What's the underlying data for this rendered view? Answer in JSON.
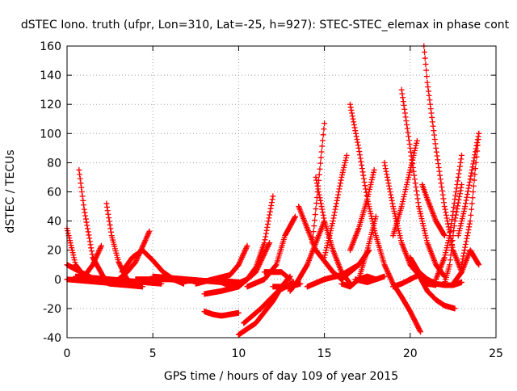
{
  "chart_data": {
    "type": "scatter",
    "title": "dSTEC Iono. truth (ufpr, Lon=310, Lat=-25, h=927): STEC-STEC_elemax in phase cont",
    "xlabel": "GPS time / hours of day 109 of year 2015",
    "ylabel": "dSTEC  / TECUs",
    "xlim": [
      0,
      25
    ],
    "ylim": [
      -40,
      160
    ],
    "xticks": [
      0,
      5,
      10,
      15,
      20,
      25
    ],
    "yticks": [
      -40,
      -20,
      0,
      20,
      40,
      60,
      80,
      100,
      120,
      140,
      160
    ],
    "grid": true,
    "marker": "+",
    "color": "#ff0000",
    "series": [
      {
        "x": [
          0.0,
          0.5,
          1.0,
          1.5,
          2.0
        ],
        "y": [
          35,
          10,
          2,
          10,
          23
        ]
      },
      {
        "x": [
          0.0,
          0.8,
          1.6,
          2.5,
          3.5,
          4.4
        ],
        "y": [
          10,
          5,
          0,
          -3,
          -4,
          -5
        ]
      },
      {
        "x": [
          0.0,
          1.0,
          2.0,
          3.0,
          4.0
        ],
        "y": [
          0,
          -1,
          -2,
          -3,
          -4
        ]
      },
      {
        "x": [
          0.7,
          1.0,
          1.5,
          2.2,
          3.0,
          3.8
        ],
        "y": [
          75,
          48,
          15,
          0,
          -3,
          -4
        ]
      },
      {
        "x": [
          2.3,
          2.6,
          3.0,
          3.5,
          4.0
        ],
        "y": [
          52,
          30,
          12,
          0,
          -4
        ]
      },
      {
        "x": [
          2.6,
          3.0,
          3.5,
          4.0,
          4.5,
          4.8
        ],
        "y": [
          -3,
          0,
          5,
          12,
          25,
          33
        ]
      },
      {
        "x": [
          0.5,
          1.5,
          2.5,
          3.5,
          4.5,
          5.5
        ],
        "y": [
          2,
          1,
          0,
          -1,
          -2,
          -3
        ]
      },
      {
        "x": [
          3.2,
          3.8,
          4.4,
          5.0,
          5.6,
          6.2,
          6.8
        ],
        "y": [
          5,
          15,
          20,
          13,
          5,
          0,
          -3
        ]
      },
      {
        "x": [
          4.0,
          5.0,
          6.0,
          7.0,
          8.0,
          9.0,
          10.0
        ],
        "y": [
          0,
          0,
          0,
          -1,
          -1,
          -1,
          -2
        ]
      },
      {
        "x": [
          5.0,
          6.0,
          7.0,
          8.0,
          9.0,
          9.6
        ],
        "y": [
          2,
          1,
          0,
          -1,
          -2,
          -5
        ]
      },
      {
        "x": [
          7.5,
          8.5,
          9.5,
          10.0,
          10.5
        ],
        "y": [
          -3,
          0,
          3,
          10,
          23
        ]
      },
      {
        "x": [
          8.0,
          9.0,
          10.0,
          11.0,
          11.8
        ],
        "y": [
          -10,
          -8,
          -5,
          5,
          25
        ]
      },
      {
        "x": [
          8.0,
          8.5,
          9.0,
          9.5,
          10.0
        ],
        "y": [
          -22,
          -24,
          -25,
          -24,
          -23
        ]
      },
      {
        "x": [
          9.5,
          10.5,
          11.0,
          11.5,
          12.0
        ],
        "y": [
          -5,
          0,
          8,
          25,
          57
        ]
      },
      {
        "x": [
          10.0,
          11.0,
          12.0,
          12.5,
          13.0
        ],
        "y": [
          -38,
          -30,
          -15,
          -5,
          2
        ]
      },
      {
        "x": [
          10.3,
          11.3,
          12.3,
          13.2
        ],
        "y": [
          -30,
          -20,
          -8,
          -2
        ]
      },
      {
        "x": [
          10.5,
          11.5,
          12.2,
          12.7,
          13.3
        ],
        "y": [
          -5,
          0,
          10,
          30,
          43
        ]
      },
      {
        "x": [
          12.0,
          13.0,
          13.6
        ],
        "y": [
          -5,
          -5,
          -3
        ]
      },
      {
        "x": [
          11.5,
          12.5,
          13.0
        ],
        "y": [
          5,
          5,
          0
        ]
      },
      {
        "x": [
          13.0,
          13.5,
          14.0,
          14.5,
          15.0
        ],
        "y": [
          -8,
          0,
          10,
          25,
          40
        ]
      },
      {
        "x": [
          13.5,
          14.5,
          15.5,
          16.0,
          16.5,
          17.0
        ],
        "y": [
          50,
          20,
          5,
          0,
          5,
          10
        ]
      },
      {
        "x": [
          14.0,
          15.0,
          16.0,
          17.0,
          17.6
        ],
        "y": [
          -5,
          0,
          3,
          10,
          20
        ]
      },
      {
        "x": [
          14.3,
          14.6,
          15.0
        ],
        "y": [
          25,
          60,
          107
        ]
      },
      {
        "x": [
          14.5,
          15.0,
          15.5,
          16.0,
          16.5
        ],
        "y": [
          70,
          40,
          20,
          5,
          -3
        ]
      },
      {
        "x": [
          15.0,
          15.5,
          16.0,
          16.3
        ],
        "y": [
          15,
          40,
          70,
          85
        ]
      },
      {
        "x": [
          16.0,
          16.5,
          17.0,
          17.5,
          18.0
        ],
        "y": [
          -3,
          -5,
          0,
          20,
          43
        ]
      },
      {
        "x": [
          16.5,
          17.0,
          17.5,
          18.0,
          18.5,
          19.0,
          19.5,
          20.0,
          20.6
        ],
        "y": [
          120,
          90,
          55,
          30,
          10,
          -3,
          -12,
          -22,
          -36
        ]
      },
      {
        "x": [
          16.5,
          17.0,
          17.5,
          17.9
        ],
        "y": [
          20,
          35,
          55,
          75
        ]
      },
      {
        "x": [
          16.8,
          17.5,
          18.0,
          18.5
        ],
        "y": [
          0,
          -2,
          0,
          2
        ]
      },
      {
        "x": [
          17.0,
          17.5,
          18.0
        ],
        "y": [
          0,
          2,
          0
        ]
      },
      {
        "x": [
          18.5,
          19.0,
          19.5,
          20.0,
          20.5,
          21.0,
          21.5
        ],
        "y": [
          80,
          50,
          25,
          10,
          3,
          -3,
          -4
        ]
      },
      {
        "x": [
          19.0,
          19.5,
          20.0,
          20.4
        ],
        "y": [
          30,
          50,
          75,
          95
        ]
      },
      {
        "x": [
          19.0,
          19.5,
          20.0,
          20.5,
          21.0,
          21.5,
          22.0,
          22.6
        ],
        "y": [
          -5,
          -3,
          0,
          3,
          -8,
          -14,
          -18,
          -20
        ]
      },
      {
        "x": [
          19.5,
          20.0,
          20.5,
          21.0,
          21.5,
          22.0
        ],
        "y": [
          130,
          90,
          50,
          25,
          10,
          2
        ]
      },
      {
        "x": [
          20.0,
          20.5,
          21.0,
          21.5,
          22.0,
          22.5,
          23.0
        ],
        "y": [
          15,
          5,
          0,
          -3,
          -4,
          -4,
          -2
        ]
      },
      {
        "x": [
          20.8,
          21.0,
          21.5,
          22.0,
          22.5,
          23.0
        ],
        "y": [
          160,
          135,
          90,
          50,
          20,
          5
        ]
      },
      {
        "x": [
          20.7,
          21.0,
          21.5,
          22.0
        ],
        "y": [
          65,
          55,
          40,
          30
        ]
      },
      {
        "x": [
          21.5,
          22.0,
          22.3,
          22.6,
          23.0
        ],
        "y": [
          0,
          15,
          30,
          55,
          85
        ]
      },
      {
        "x": [
          22.0,
          22.3,
          22.6,
          23.0
        ],
        "y": [
          -3,
          10,
          40,
          65
        ]
      },
      {
        "x": [
          22.5,
          23.0,
          23.5,
          24.0
        ],
        "y": [
          -3,
          5,
          20,
          10
        ]
      },
      {
        "x": [
          23.0,
          23.5,
          24.0
        ],
        "y": [
          10,
          40,
          100
        ]
      },
      {
        "x": [
          22.8,
          23.2,
          23.6,
          24.0
        ],
        "y": [
          30,
          50,
          75,
          100
        ]
      }
    ]
  }
}
